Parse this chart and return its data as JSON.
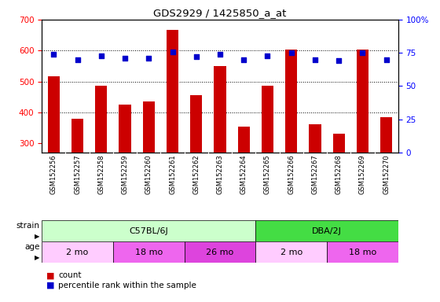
{
  "title": "GDS2929 / 1425850_a_at",
  "samples": [
    "GSM152256",
    "GSM152257",
    "GSM152258",
    "GSM152259",
    "GSM152260",
    "GSM152261",
    "GSM152262",
    "GSM152263",
    "GSM152264",
    "GSM152265",
    "GSM152266",
    "GSM152267",
    "GSM152268",
    "GSM152269",
    "GSM152270"
  ],
  "counts": [
    517,
    378,
    487,
    425,
    435,
    668,
    455,
    549,
    355,
    487,
    604,
    362,
    332,
    604,
    385
  ],
  "percentiles": [
    74,
    70,
    73,
    71,
    71,
    76,
    72,
    74,
    70,
    73,
    75,
    70,
    69,
    75,
    70
  ],
  "ylim_left": [
    270,
    700
  ],
  "ylim_right": [
    0,
    100
  ],
  "yticks_left": [
    300,
    400,
    500,
    600,
    700
  ],
  "yticks_right": [
    0,
    25,
    50,
    75,
    100
  ],
  "ytick_right_labels": [
    "0",
    "25",
    "50",
    "75",
    "100%"
  ],
  "grid_values": [
    400,
    500,
    600
  ],
  "bar_color": "#cc0000",
  "dot_color": "#0000cc",
  "strain_groups": [
    {
      "label": "C57BL/6J",
      "start": 0,
      "end": 9,
      "color": "#ccffcc"
    },
    {
      "label": "DBA/2J",
      "start": 9,
      "end": 15,
      "color": "#44dd44"
    }
  ],
  "age_groups": [
    {
      "label": "2 mo",
      "start": 0,
      "end": 3,
      "color": "#ffccff"
    },
    {
      "label": "18 mo",
      "start": 3,
      "end": 6,
      "color": "#ee66ee"
    },
    {
      "label": "26 mo",
      "start": 6,
      "end": 9,
      "color": "#dd44dd"
    },
    {
      "label": "2 mo",
      "start": 9,
      "end": 12,
      "color": "#ffccff"
    },
    {
      "label": "18 mo",
      "start": 12,
      "end": 15,
      "color": "#ee66ee"
    }
  ],
  "tick_area_color": "#d8d8d8"
}
